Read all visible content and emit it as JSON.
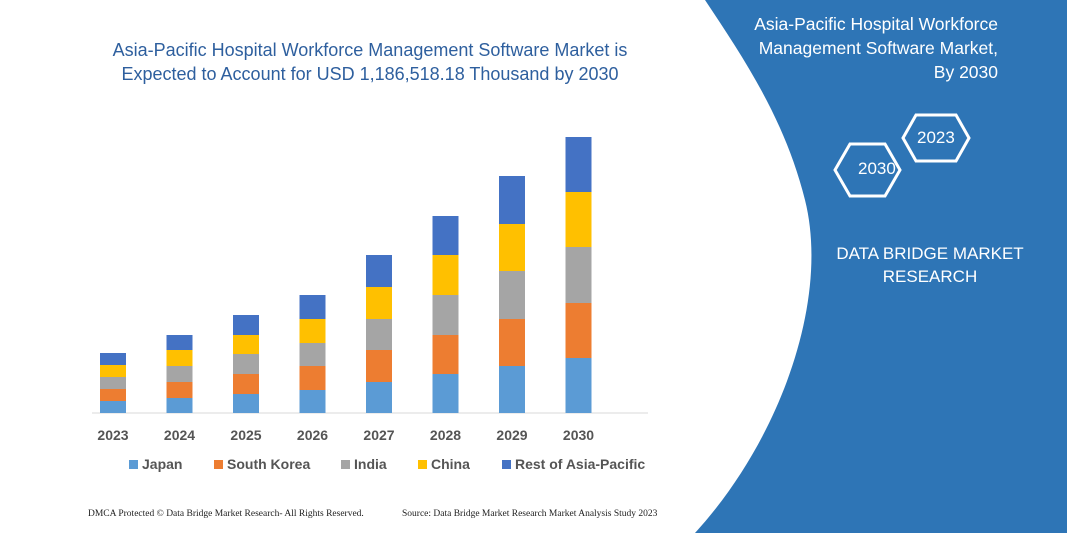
{
  "title": "Asia-Pacific Hospital Workforce Management Software Market is Expected to Account for USD 1,186,518.18 Thousand by 2030",
  "side_panel": {
    "title_lines": [
      "Asia-Pacific Hospital Workforce",
      "Management Software Market,",
      "By 2030"
    ],
    "hex_a": "2023",
    "hex_b": "2030",
    "brand_lines": [
      "DATA BRIDGE MARKET",
      "RESEARCH"
    ],
    "color": "#2e75b6"
  },
  "footer": {
    "left": "DMCA Protected © Data Bridge Market Research-  All Rights Reserved.",
    "right": "Source:  Data Bridge Market Research  Market  Analysis Study 2023"
  },
  "chart_data": {
    "type": "bar",
    "stacked": true,
    "title": "Asia-Pacific Hospital Workforce Management Software Market is Expected to Account for USD 1,186,518.18 Thousand by 2030",
    "categories": [
      "2023",
      "2024",
      "2025",
      "2026",
      "2027",
      "2028",
      "2029",
      "2030"
    ],
    "y_axis_shown": false,
    "grid": false,
    "legend_position": "bottom",
    "series": [
      {
        "name": "Japan",
        "color": "#5b9bd5",
        "values": [
          12,
          15,
          19,
          23,
          31,
          39,
          47,
          55
        ]
      },
      {
        "name": "South Korea",
        "color": "#ed7d31",
        "values": [
          12,
          16,
          20,
          24,
          32,
          39,
          47,
          55
        ]
      },
      {
        "name": "India",
        "color": "#a5a5a5",
        "values": [
          12,
          16,
          20,
          23,
          31,
          40,
          48,
          56
        ]
      },
      {
        "name": "China",
        "color": "#ffc000",
        "values": [
          12,
          16,
          19,
          24,
          32,
          40,
          47,
          55
        ]
      },
      {
        "name": "Rest of Asia-Pacific",
        "color": "#4472c4",
        "values": [
          12,
          15,
          20,
          24,
          32,
          39,
          48,
          55
        ]
      }
    ]
  }
}
